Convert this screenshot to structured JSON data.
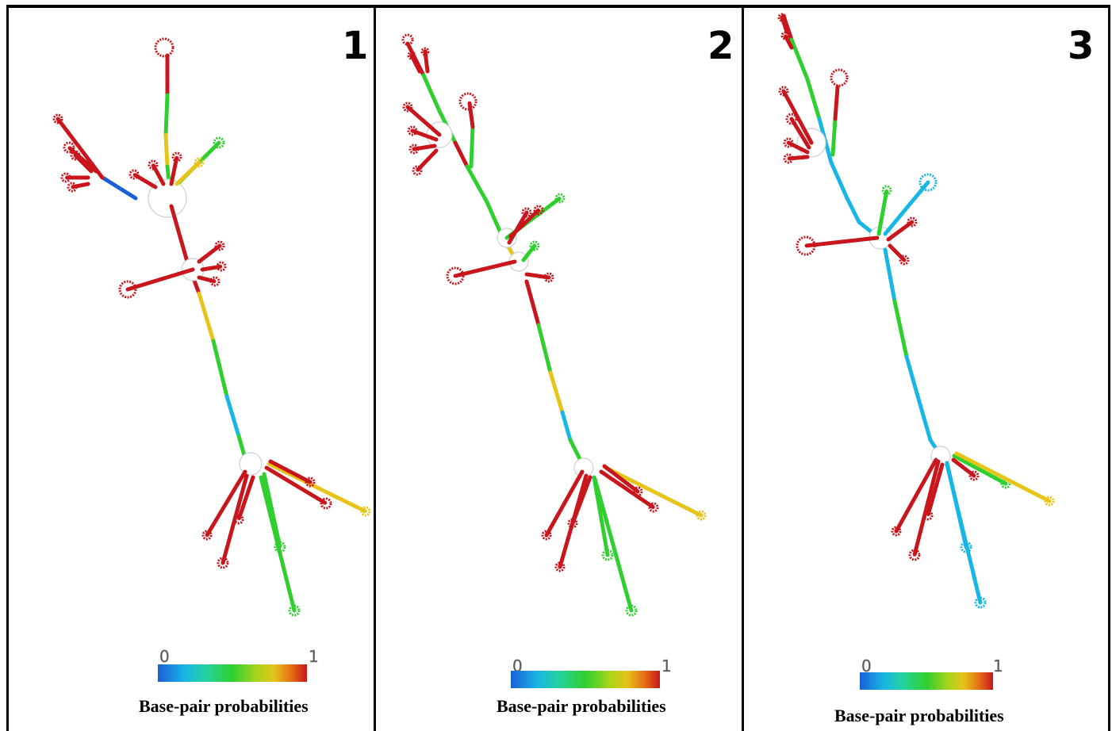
{
  "panels": [
    {
      "number": "1",
      "colorbar": {
        "min_label": "0",
        "max_label": "1",
        "caption": "Base-pair probabilities"
      }
    },
    {
      "number": "2",
      "colorbar": {
        "min_label": "0",
        "max_label": "1",
        "caption": "Base-pair probabilities"
      }
    },
    {
      "number": "3",
      "colorbar": {
        "min_label": "0",
        "max_label": "1",
        "caption": "Base-pair probabilities"
      }
    }
  ],
  "colors": {
    "low": "#1b5fd6",
    "cyan": "#17b6e6",
    "green": "#2fcf2f",
    "yellow": "#e6c418",
    "high": "#c8161c"
  }
}
